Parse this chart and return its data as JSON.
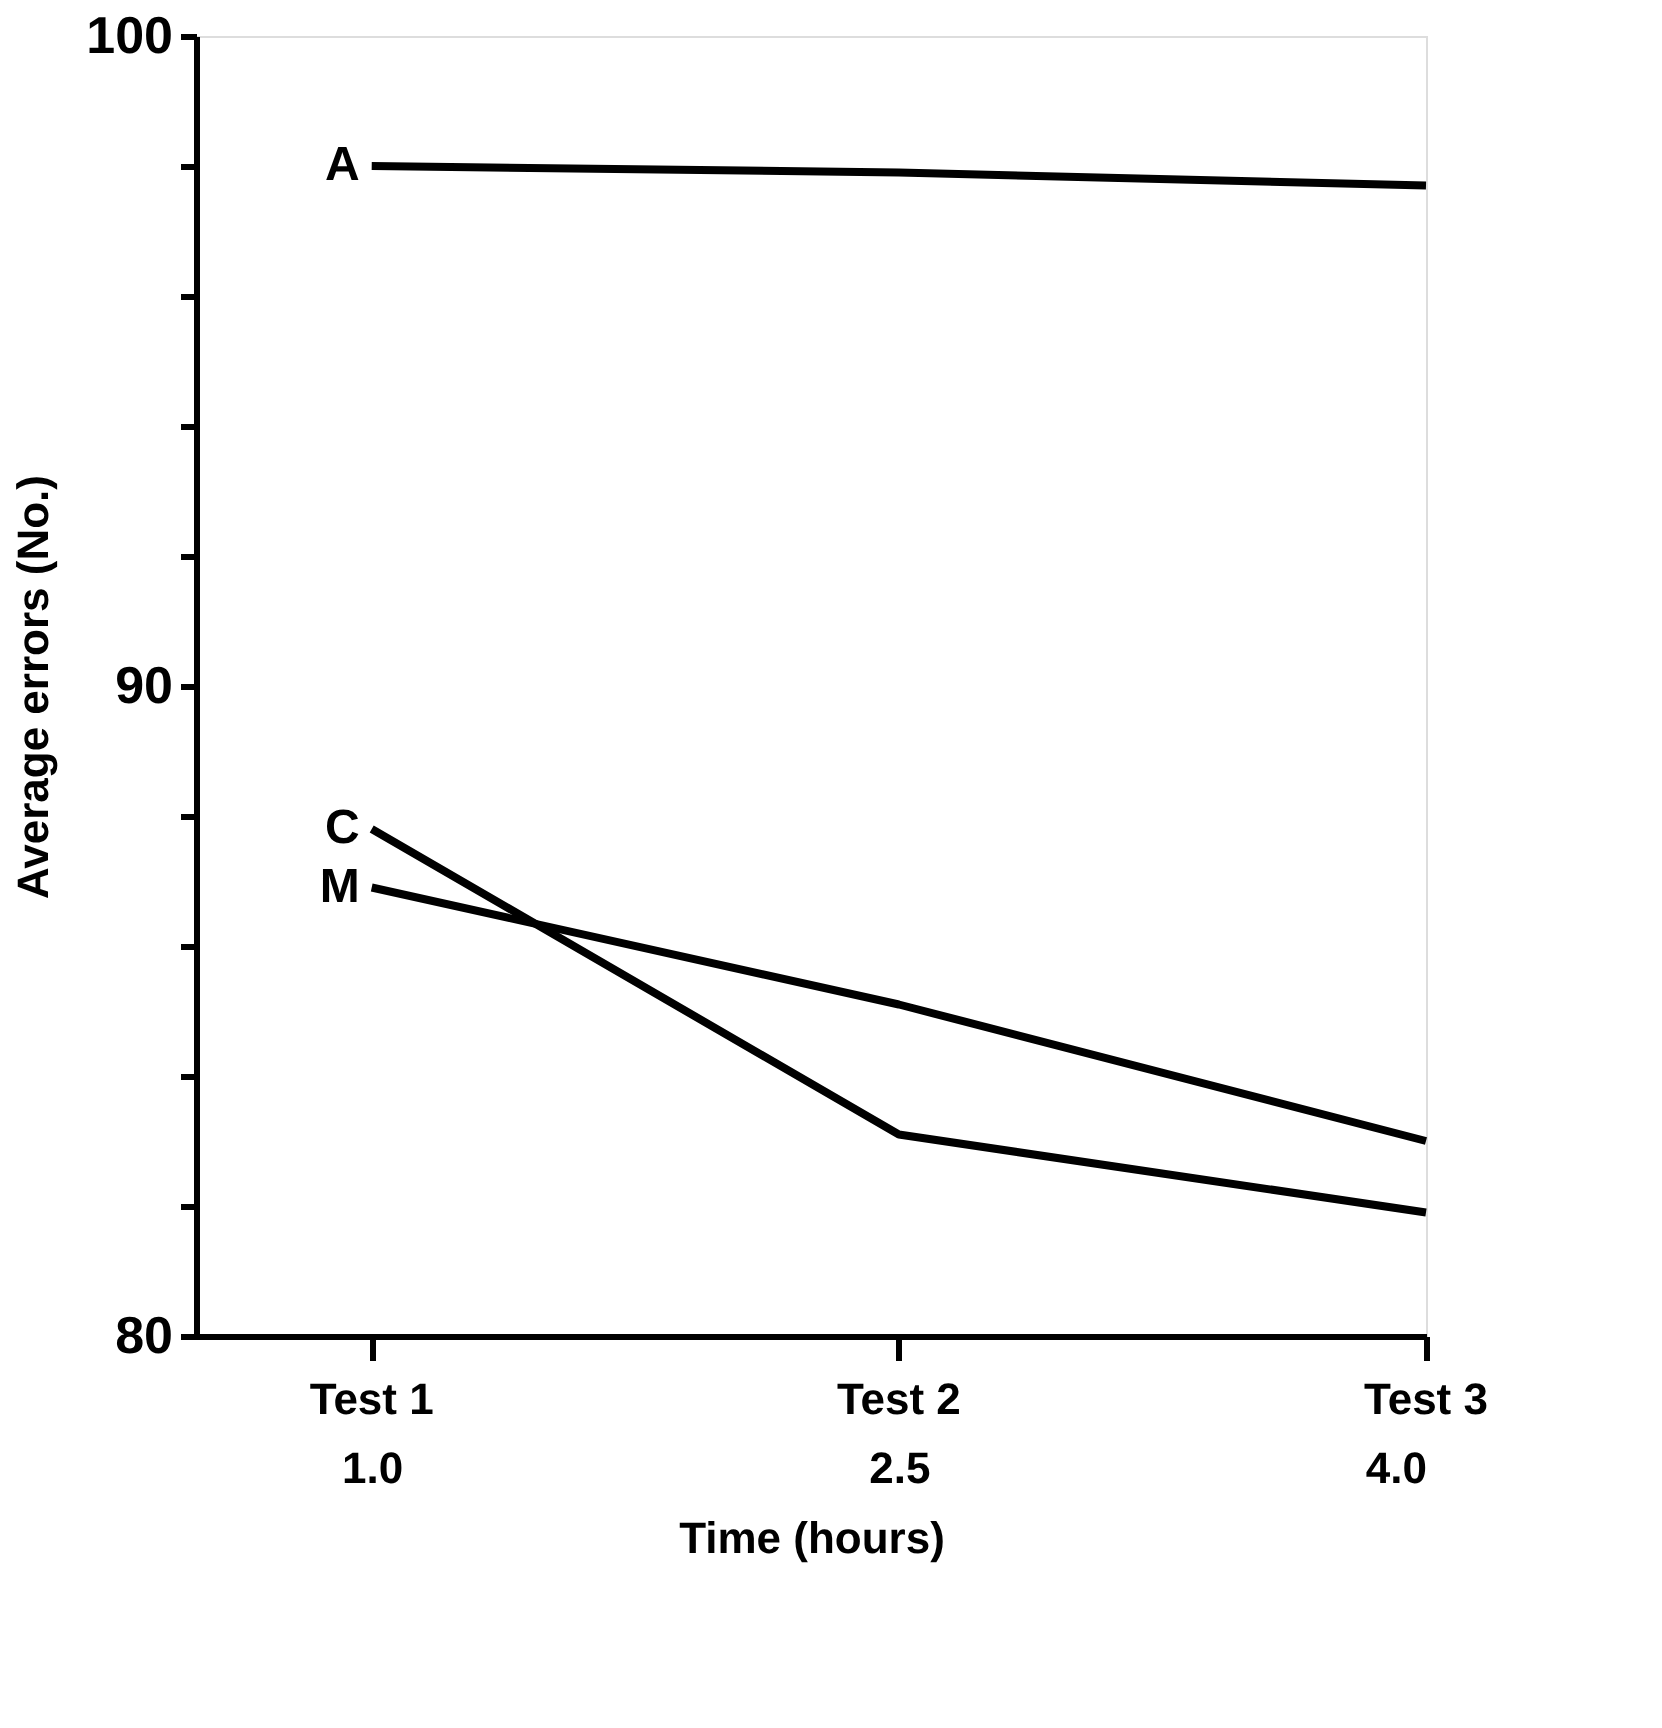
{
  "chart_data": {
    "type": "line",
    "xlabel": "Time    (hours)",
    "ylabel": "Average errors (No.)",
    "x": [
      1.0,
      2.5,
      4.0
    ],
    "series": [
      {
        "name": "A",
        "color": "#000000",
        "values": [
          98.0,
          97.9,
          97.7
        ]
      },
      {
        "name": "C",
        "color": "#000000",
        "values": [
          87.8,
          83.1,
          81.9
        ]
      },
      {
        "name": "M",
        "color": "#000000",
        "values": [
          86.9,
          85.1,
          83.0
        ]
      }
    ],
    "xlim": [
      0.5,
      4.0
    ],
    "xticks": [
      {
        "value": 1.0,
        "label": "1.0"
      },
      {
        "value": 2.5,
        "label": "2.5"
      },
      {
        "value": 4.0,
        "label": "4.0"
      }
    ],
    "annotations": [
      "Test 1",
      "Test 2",
      "Test 3"
    ],
    "ylim": [
      80,
      100
    ],
    "yticks": [
      80,
      {
        "value": 82,
        "label": null
      },
      {
        "value": 84,
        "label": null
      },
      {
        "value": 86,
        "label": null
      },
      {
        "value": 88,
        "label": null
      },
      90,
      {
        "value": 92,
        "label": null
      },
      {
        "value": 94,
        "label": null
      },
      {
        "value": 96,
        "label": null
      },
      {
        "value": 98,
        "label": null
      },
      100
    ],
    "grid": false,
    "legend": false,
    "marker": "none",
    "line_style": "solid"
  }
}
